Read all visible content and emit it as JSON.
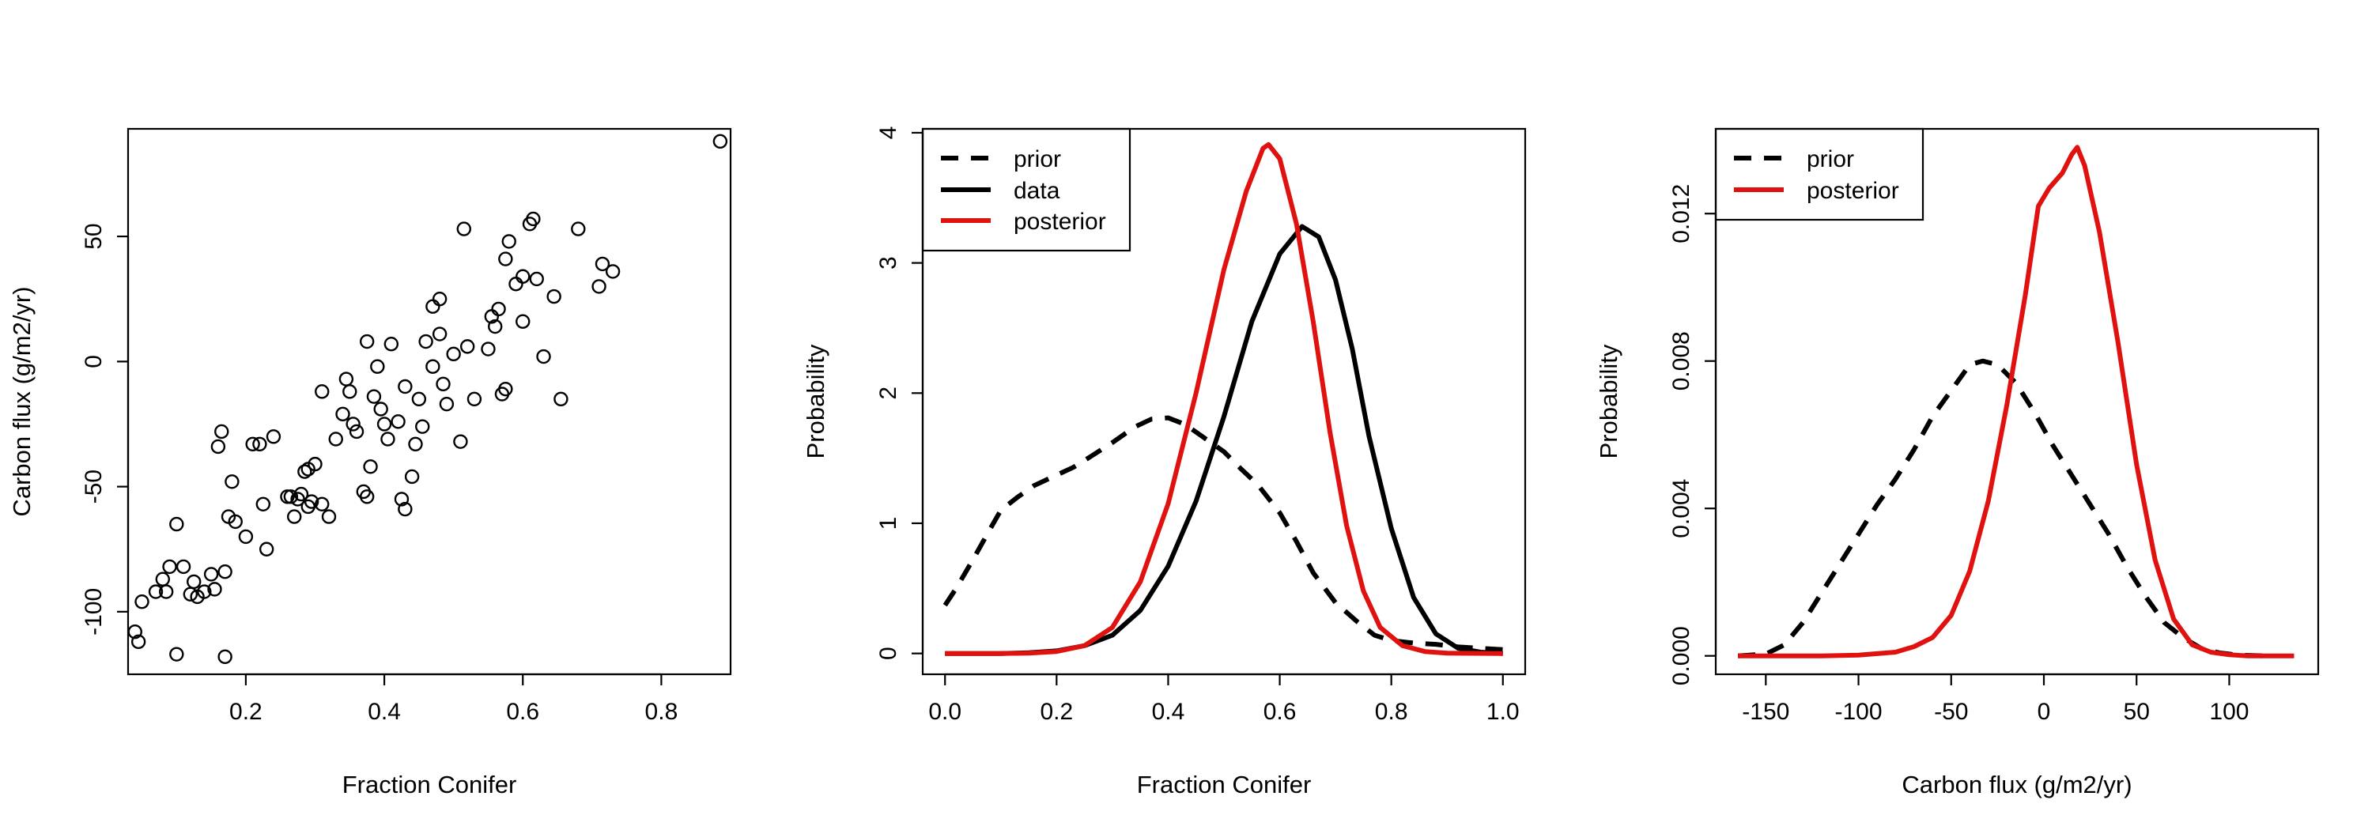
{
  "chart_data": [
    {
      "type": "scatter",
      "xlabel": "Fraction Conifer",
      "ylabel": "Carbon flux (g/m2/yr)",
      "xlim": [
        0.03,
        0.9
      ],
      "ylim": [
        -125,
        93
      ],
      "xticks": [
        0.2,
        0.4,
        0.6,
        0.8
      ],
      "yticks": [
        -100,
        -50,
        0,
        50
      ],
      "xtick_labels": [
        "0.2",
        "0.4",
        "0.6",
        "0.8"
      ],
      "ytick_labels": [
        "-100",
        "-50",
        "0",
        "50"
      ],
      "grid": false,
      "points": [
        [
          0.04,
          -108
        ],
        [
          0.045,
          -112
        ],
        [
          0.05,
          -96
        ],
        [
          0.07,
          -92
        ],
        [
          0.08,
          -87
        ],
        [
          0.085,
          -92
        ],
        [
          0.09,
          -82
        ],
        [
          0.1,
          -65
        ],
        [
          0.1,
          -117
        ],
        [
          0.11,
          -82
        ],
        [
          0.12,
          -93
        ],
        [
          0.125,
          -88
        ],
        [
          0.13,
          -94
        ],
        [
          0.14,
          -92
        ],
        [
          0.15,
          -85
        ],
        [
          0.155,
          -91
        ],
        [
          0.16,
          -34
        ],
        [
          0.165,
          -28
        ],
        [
          0.17,
          -118
        ],
        [
          0.17,
          -84
        ],
        [
          0.175,
          -62
        ],
        [
          0.18,
          -48
        ],
        [
          0.185,
          -64
        ],
        [
          0.2,
          -70
        ],
        [
          0.21,
          -33
        ],
        [
          0.22,
          -33
        ],
        [
          0.225,
          -57
        ],
        [
          0.23,
          -75
        ],
        [
          0.24,
          -30
        ],
        [
          0.26,
          -54
        ],
        [
          0.265,
          -54
        ],
        [
          0.27,
          -62
        ],
        [
          0.275,
          -55
        ],
        [
          0.28,
          -53
        ],
        [
          0.285,
          -44
        ],
        [
          0.29,
          -43
        ],
        [
          0.29,
          -58
        ],
        [
          0.295,
          -56
        ],
        [
          0.3,
          -41
        ],
        [
          0.31,
          -57
        ],
        [
          0.31,
          -12
        ],
        [
          0.32,
          -62
        ],
        [
          0.33,
          -31
        ],
        [
          0.34,
          -21
        ],
        [
          0.345,
          -7
        ],
        [
          0.35,
          -12
        ],
        [
          0.355,
          -25
        ],
        [
          0.36,
          -28
        ],
        [
          0.37,
          -52
        ],
        [
          0.375,
          -54
        ],
        [
          0.375,
          8
        ],
        [
          0.38,
          -42
        ],
        [
          0.385,
          -14
        ],
        [
          0.39,
          -2
        ],
        [
          0.395,
          -19
        ],
        [
          0.4,
          -25
        ],
        [
          0.405,
          -31
        ],
        [
          0.41,
          7
        ],
        [
          0.42,
          -24
        ],
        [
          0.425,
          -55
        ],
        [
          0.43,
          -59
        ],
        [
          0.43,
          -10
        ],
        [
          0.44,
          -46
        ],
        [
          0.445,
          -33
        ],
        [
          0.45,
          -15
        ],
        [
          0.455,
          -26
        ],
        [
          0.46,
          8
        ],
        [
          0.47,
          22
        ],
        [
          0.47,
          -2
        ],
        [
          0.48,
          25
        ],
        [
          0.48,
          11
        ],
        [
          0.485,
          -9
        ],
        [
          0.49,
          -17
        ],
        [
          0.5,
          3
        ],
        [
          0.51,
          -32
        ],
        [
          0.515,
          53
        ],
        [
          0.52,
          6
        ],
        [
          0.53,
          -15
        ],
        [
          0.55,
          5
        ],
        [
          0.555,
          18
        ],
        [
          0.56,
          14
        ],
        [
          0.565,
          21
        ],
        [
          0.57,
          -13
        ],
        [
          0.575,
          41
        ],
        [
          0.575,
          -11
        ],
        [
          0.58,
          48
        ],
        [
          0.59,
          31
        ],
        [
          0.6,
          34
        ],
        [
          0.6,
          16
        ],
        [
          0.61,
          55
        ],
        [
          0.615,
          57
        ],
        [
          0.62,
          33
        ],
        [
          0.63,
          2
        ],
        [
          0.645,
          26
        ],
        [
          0.655,
          -15
        ],
        [
          0.68,
          53
        ],
        [
          0.71,
          30
        ],
        [
          0.715,
          39
        ],
        [
          0.73,
          36
        ],
        [
          0.885,
          88
        ]
      ]
    },
    {
      "type": "line",
      "xlabel": "Fraction Conifer",
      "ylabel": "Probability",
      "xlim": [
        -0.04,
        1.04
      ],
      "ylim": [
        -0.16,
        4.03
      ],
      "xticks": [
        0.0,
        0.2,
        0.4,
        0.6,
        0.8,
        1.0
      ],
      "yticks": [
        0,
        1,
        2,
        3,
        4
      ],
      "xtick_labels": [
        "0.0",
        "0.2",
        "0.4",
        "0.6",
        "0.8",
        "1.0"
      ],
      "ytick_labels": [
        "0",
        "1",
        "2",
        "3",
        "4"
      ],
      "grid": false,
      "legend_position": "top-left",
      "legend": [
        "prior",
        "data",
        "posterior"
      ],
      "series": [
        {
          "name": "prior",
          "color": "#000000",
          "dash": true,
          "points": [
            [
              0.0,
              0.37
            ],
            [
              0.02,
              0.5
            ],
            [
              0.05,
              0.72
            ],
            [
              0.08,
              0.95
            ],
            [
              0.1,
              1.1
            ],
            [
              0.13,
              1.2
            ],
            [
              0.16,
              1.29
            ],
            [
              0.2,
              1.37
            ],
            [
              0.23,
              1.43
            ],
            [
              0.26,
              1.51
            ],
            [
              0.3,
              1.62
            ],
            [
              0.34,
              1.74
            ],
            [
              0.37,
              1.8
            ],
            [
              0.4,
              1.81
            ],
            [
              0.43,
              1.76
            ],
            [
              0.46,
              1.67
            ],
            [
              0.5,
              1.55
            ],
            [
              0.53,
              1.42
            ],
            [
              0.56,
              1.3
            ],
            [
              0.6,
              1.08
            ],
            [
              0.63,
              0.86
            ],
            [
              0.66,
              0.62
            ],
            [
              0.7,
              0.39
            ],
            [
              0.74,
              0.24
            ],
            [
              0.77,
              0.14
            ],
            [
              0.8,
              0.1
            ],
            [
              0.84,
              0.08
            ],
            [
              0.88,
              0.07
            ],
            [
              0.92,
              0.05
            ],
            [
              0.96,
              0.04
            ],
            [
              1.0,
              0.03
            ]
          ]
        },
        {
          "name": "data",
          "color": "#000000",
          "dash": false,
          "points": [
            [
              0.0,
              0.0
            ],
            [
              0.1,
              0.0
            ],
            [
              0.15,
              0.005
            ],
            [
              0.2,
              0.02
            ],
            [
              0.25,
              0.06
            ],
            [
              0.3,
              0.14
            ],
            [
              0.35,
              0.33
            ],
            [
              0.4,
              0.67
            ],
            [
              0.45,
              1.17
            ],
            [
              0.5,
              1.82
            ],
            [
              0.55,
              2.55
            ],
            [
              0.6,
              3.07
            ],
            [
              0.64,
              3.28
            ],
            [
              0.67,
              3.2
            ],
            [
              0.7,
              2.87
            ],
            [
              0.73,
              2.34
            ],
            [
              0.76,
              1.67
            ],
            [
              0.8,
              0.96
            ],
            [
              0.84,
              0.43
            ],
            [
              0.88,
              0.15
            ],
            [
              0.92,
              0.04
            ],
            [
              0.96,
              0.01
            ],
            [
              1.0,
              0.0
            ]
          ]
        },
        {
          "name": "posterior",
          "color": "#e0120f",
          "dash": false,
          "points": [
            [
              0.0,
              0.0
            ],
            [
              0.1,
              0.0
            ],
            [
              0.15,
              0.003
            ],
            [
              0.2,
              0.015
            ],
            [
              0.25,
              0.06
            ],
            [
              0.3,
              0.2
            ],
            [
              0.35,
              0.55
            ],
            [
              0.4,
              1.15
            ],
            [
              0.45,
              2.0
            ],
            [
              0.5,
              2.95
            ],
            [
              0.54,
              3.55
            ],
            [
              0.57,
              3.88
            ],
            [
              0.58,
              3.91
            ],
            [
              0.6,
              3.8
            ],
            [
              0.63,
              3.3
            ],
            [
              0.66,
              2.55
            ],
            [
              0.69,
              1.7
            ],
            [
              0.72,
              0.98
            ],
            [
              0.75,
              0.48
            ],
            [
              0.78,
              0.2
            ],
            [
              0.82,
              0.06
            ],
            [
              0.86,
              0.015
            ],
            [
              0.9,
              0.003
            ],
            [
              1.0,
              0.0
            ]
          ]
        }
      ]
    },
    {
      "type": "line",
      "xlabel": "Carbon flux (g/m2/yr)",
      "ylabel": "Probability",
      "xlim": [
        -177,
        148
      ],
      "ylim": [
        -0.0005,
        0.0143
      ],
      "xticks": [
        -150,
        -100,
        -50,
        0,
        50,
        100
      ],
      "yticks": [
        0.0,
        0.004,
        0.008,
        0.012
      ],
      "xtick_labels": [
        "-150",
        "-100",
        "-50",
        "0",
        "50",
        "100"
      ],
      "ytick_labels": [
        "0.000",
        "0.004",
        "0.008",
        "0.012"
      ],
      "grid": false,
      "legend_position": "top-left",
      "legend": [
        "prior",
        "posterior"
      ],
      "series": [
        {
          "name": "prior",
          "color": "#000000",
          "dash": true,
          "points": [
            [
              -165,
              0.0
            ],
            [
              -150,
              5e-05
            ],
            [
              -140,
              0.0003
            ],
            [
              -130,
              0.0009
            ],
            [
              -120,
              0.0017
            ],
            [
              -110,
              0.0025
            ],
            [
              -100,
              0.0033
            ],
            [
              -90,
              0.0041
            ],
            [
              -80,
              0.0048
            ],
            [
              -70,
              0.0056
            ],
            [
              -60,
              0.0065
            ],
            [
              -50,
              0.0072
            ],
            [
              -40,
              0.0079
            ],
            [
              -33,
              0.008
            ],
            [
              -25,
              0.0079
            ],
            [
              -15,
              0.0074
            ],
            [
              -5,
              0.0066
            ],
            [
              5,
              0.0057
            ],
            [
              15,
              0.0049
            ],
            [
              25,
              0.0041
            ],
            [
              35,
              0.0033
            ],
            [
              45,
              0.0024
            ],
            [
              55,
              0.0016
            ],
            [
              65,
              0.0009
            ],
            [
              75,
              0.0005
            ],
            [
              85,
              0.0002
            ],
            [
              95,
              8e-05
            ],
            [
              105,
              2e-05
            ],
            [
              120,
              0.0
            ]
          ]
        },
        {
          "name": "posterior",
          "color": "#e0120f",
          "dash": false,
          "points": [
            [
              -165,
              0.0
            ],
            [
              -120,
              0.0
            ],
            [
              -100,
              2e-05
            ],
            [
              -80,
              0.0001
            ],
            [
              -70,
              0.00025
            ],
            [
              -60,
              0.0005
            ],
            [
              -50,
              0.0011
            ],
            [
              -40,
              0.0023
            ],
            [
              -30,
              0.0042
            ],
            [
              -20,
              0.0068
            ],
            [
              -10,
              0.0098
            ],
            [
              -3,
              0.0122
            ],
            [
              3,
              0.0127
            ],
            [
              10,
              0.0131
            ],
            [
              15,
              0.0136
            ],
            [
              18,
              0.0138
            ],
            [
              22,
              0.0133
            ],
            [
              30,
              0.0115
            ],
            [
              40,
              0.0085
            ],
            [
              50,
              0.0052
            ],
            [
              60,
              0.0026
            ],
            [
              70,
              0.001
            ],
            [
              80,
              0.0003
            ],
            [
              90,
              0.0001
            ],
            [
              100,
              3e-05
            ],
            [
              110,
              0.0
            ],
            [
              135,
              0.0
            ]
          ]
        }
      ]
    }
  ]
}
